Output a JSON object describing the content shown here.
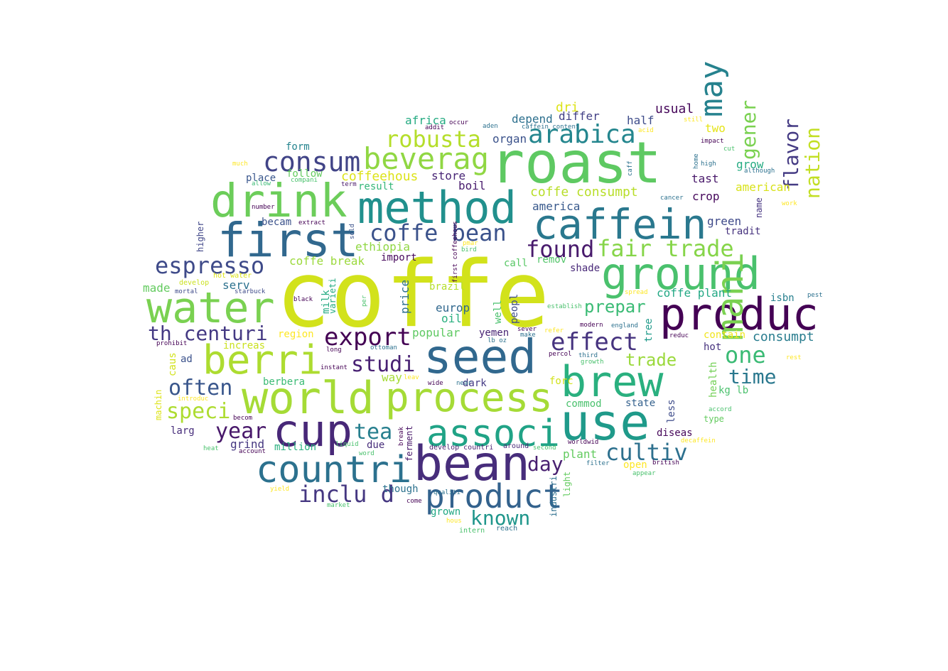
{
  "words": [
    {
      "text": "coffe",
      "color": "#d2e21b"
    },
    {
      "text": "roast",
      "color": "#5ec962"
    },
    {
      "text": "method",
      "color": "#21908d"
    },
    {
      "text": "drink",
      "color": "#6ccd5a"
    },
    {
      "text": "first",
      "color": "#31688e"
    },
    {
      "text": "caffein",
      "color": "#2a788e"
    },
    {
      "text": "ground",
      "color": "#4ac16d"
    },
    {
      "text": "produc",
      "color": "#440154"
    },
    {
      "text": "water",
      "color": "#7ad151"
    },
    {
      "text": "seed",
      "color": "#31688e"
    },
    {
      "text": "berri",
      "color": "#addc30"
    },
    {
      "text": "world",
      "color": "#a5db36"
    },
    {
      "text": "process",
      "color": "#a5db36"
    },
    {
      "text": "cup",
      "color": "#482878"
    },
    {
      "text": "use",
      "color": "#1f9a8a"
    },
    {
      "text": "brew",
      "color": "#2ab07f"
    },
    {
      "text": "associ",
      "color": "#20a386"
    },
    {
      "text": "bean",
      "color": "#472d7b"
    },
    {
      "text": "countri",
      "color": "#2c718e"
    },
    {
      "text": "product",
      "color": "#33628d"
    },
    {
      "text": "mani",
      "color": "#7ad151"
    },
    {
      "text": "may",
      "color": "#26828e"
    },
    {
      "text": "beverag",
      "color": "#90d743"
    },
    {
      "text": "consum",
      "color": "#414487"
    },
    {
      "text": "arabica",
      "color": "#24868e"
    },
    {
      "text": "robusta",
      "color": "#b5de2b"
    },
    {
      "text": "coffe bean",
      "color": "#3b528b"
    },
    {
      "text": "found",
      "color": "#481a6c"
    },
    {
      "text": "fair trade",
      "color": "#86d549"
    },
    {
      "text": "espresso",
      "color": "#3e4a89"
    },
    {
      "text": "th centuri",
      "color": "#443983"
    },
    {
      "text": "export",
      "color": "#440154"
    },
    {
      "text": "effect",
      "color": "#46337f"
    },
    {
      "text": "studi",
      "color": "#482173"
    },
    {
      "text": "often",
      "color": "#39568c"
    },
    {
      "text": "speci",
      "color": "#addc30"
    },
    {
      "text": "year",
      "color": "#48186a"
    },
    {
      "text": "tea",
      "color": "#277f8e"
    },
    {
      "text": "inclu d",
      "color": "#453781"
    },
    {
      "text": "known",
      "color": "#1f968b"
    },
    {
      "text": "day",
      "color": "#481f70"
    },
    {
      "text": "cultiv",
      "color": "#2d708e"
    },
    {
      "text": "one",
      "color": "#3bbb75"
    },
    {
      "text": "time",
      "color": "#2a788e"
    },
    {
      "text": "trade",
      "color": "#9bd93c"
    },
    {
      "text": "prepar",
      "color": "#3bbb75"
    },
    {
      "text": "flavor",
      "color": "#443a83"
    },
    {
      "text": "nation",
      "color": "#c2df23"
    },
    {
      "text": "gener",
      "color": "#7ad151"
    },
    {
      "text": "coffe consumpt",
      "color": "#b8de29"
    },
    {
      "text": "coffeehous",
      "color": "#dde318"
    },
    {
      "text": "coffe break",
      "color": "#9bd93c"
    },
    {
      "text": "coffe plant",
      "color": "#22a884"
    },
    {
      "text": "consumpt",
      "color": "#287c8e"
    },
    {
      "text": "ethiopia",
      "color": "#90d743"
    },
    {
      "text": "america",
      "color": "#38598c"
    },
    {
      "text": "organ",
      "color": "#3b528b"
    },
    {
      "text": "depend",
      "color": "#2d708e"
    },
    {
      "text": "differ",
      "color": "#424086"
    },
    {
      "text": "half",
      "color": "#3e4c8a"
    },
    {
      "text": "usual",
      "color": "#46075a"
    },
    {
      "text": "dri",
      "color": "#dde318"
    },
    {
      "text": "two",
      "color": "#e5e419"
    },
    {
      "text": "africa",
      "color": "#25ab82"
    },
    {
      "text": "grow",
      "color": "#25ab82"
    },
    {
      "text": "american",
      "color": "#d8e219"
    },
    {
      "text": "tast",
      "color": "#48186a"
    },
    {
      "text": "crop",
      "color": "#46085c"
    },
    {
      "text": "green",
      "color": "#3e4989"
    },
    {
      "text": "tradit",
      "color": "#46327e"
    },
    {
      "text": "form",
      "color": "#25848e"
    },
    {
      "text": "follow",
      "color": "#63cb5f"
    },
    {
      "text": "place",
      "color": "#39568c"
    },
    {
      "text": "becam",
      "color": "#3b528b"
    },
    {
      "text": "store",
      "color": "#482576"
    },
    {
      "text": "boil",
      "color": "#481b6d"
    },
    {
      "text": "result",
      "color": "#35b779"
    },
    {
      "text": "import",
      "color": "#46085c"
    },
    {
      "text": "remov",
      "color": "#52c569"
    },
    {
      "text": "call",
      "color": "#58c765"
    },
    {
      "text": "shade",
      "color": "#482878"
    },
    {
      "text": "serv",
      "color": "#2c718e"
    },
    {
      "text": "made",
      "color": "#63cb5f"
    },
    {
      "text": "grind",
      "color": "#453781"
    },
    {
      "text": "million",
      "color": "#2ab07f"
    },
    {
      "text": "due",
      "color": "#472c7a"
    },
    {
      "text": "europ",
      "color": "#31688e"
    },
    {
      "text": "oil",
      "color": "#29af7f"
    },
    {
      "text": "popular",
      "color": "#5ec962"
    },
    {
      "text": "yemen",
      "color": "#482475"
    },
    {
      "text": "region",
      "color": "#fde725"
    },
    {
      "text": "increas",
      "color": "#cae11f"
    },
    {
      "text": "hot",
      "color": "#46327e"
    },
    {
      "text": "contain",
      "color": "#f1e51d"
    },
    {
      "text": "isbn",
      "color": "#277f8e"
    },
    {
      "text": "ad",
      "color": "#3b528b"
    },
    {
      "text": "caus",
      "color": "#d2e21b"
    },
    {
      "text": "berbera",
      "color": "#3bbb75"
    },
    {
      "text": "way",
      "color": "#a5db36"
    },
    {
      "text": "dark",
      "color": "#443983"
    },
    {
      "text": "forc",
      "color": "#d2e21b"
    },
    {
      "text": "commod",
      "color": "#4ac16d"
    },
    {
      "text": "state",
      "color": "#34618d"
    },
    {
      "text": "diseas",
      "color": "#46075a"
    },
    {
      "text": "type",
      "color": "#63cb5f"
    },
    {
      "text": "kg lb",
      "color": "#4ac16d"
    },
    {
      "text": "larg",
      "color": "#472d7b"
    },
    {
      "text": "though",
      "color": "#2c728e"
    },
    {
      "text": "plant",
      "color": "#63cb5f"
    },
    {
      "text": "open",
      "color": "#fde725"
    },
    {
      "text": "grown",
      "color": "#22a884"
    },
    {
      "text": "milk",
      "color": "#25ab82"
    },
    {
      "text": "price",
      "color": "#2d708e"
    },
    {
      "text": "well",
      "color": "#4ac16d"
    },
    {
      "text": "peopl",
      "color": "#3e4c8a"
    },
    {
      "text": "brazil",
      "color": "#b5de2b"
    },
    {
      "text": "varieti",
      "color": "#25ab82"
    },
    {
      "text": "health",
      "color": "#73d056"
    },
    {
      "text": "less",
      "color": "#3e4c8a"
    },
    {
      "text": "tree",
      "color": "#1f9a8a"
    },
    {
      "text": "ferment",
      "color": "#481769"
    },
    {
      "text": "light",
      "color": "#63cb5f"
    },
    {
      "text": "industri",
      "color": "#2e6f8e"
    },
    {
      "text": "higher",
      "color": "#404688"
    },
    {
      "text": "machin",
      "color": "#dde318"
    },
    {
      "text": "name",
      "color": "#463480"
    },
    {
      "text": "develop",
      "color": "#cae11f"
    },
    {
      "text": "hot water",
      "color": "#dde318"
    },
    {
      "text": "mortal",
      "color": "#3e4a89"
    },
    {
      "text": "starbuck",
      "color": "#3e4a89"
    },
    {
      "text": "black",
      "color": "#440154"
    },
    {
      "text": "number",
      "color": "#440154"
    },
    {
      "text": "much",
      "color": "#fde725"
    },
    {
      "text": "allow",
      "color": "#3bbb75"
    },
    {
      "text": "compani",
      "color": "#4ac16d"
    },
    {
      "text": "term",
      "color": "#481769"
    },
    {
      "text": "sold",
      "color": "#3b528b"
    },
    {
      "text": "extract",
      "color": "#440154"
    },
    {
      "text": "prohibit",
      "color": "#440154"
    },
    {
      "text": "introduc",
      "color": "#fde725"
    },
    {
      "text": "becom",
      "color": "#440154"
    },
    {
      "text": "heat",
      "color": "#4ac16d"
    },
    {
      "text": "account",
      "color": "#440154"
    },
    {
      "text": "liquid",
      "color": "#4ac16d"
    },
    {
      "text": "word",
      "color": "#4ac16d"
    },
    {
      "text": "break",
      "color": "#440154"
    },
    {
      "text": "develop countri",
      "color": "#481f70"
    },
    {
      "text": "around",
      "color": "#482878"
    },
    {
      "text": "second",
      "color": "#4ac16d"
    },
    {
      "text": "worldwid",
      "color": "#440154"
    },
    {
      "text": "filter",
      "color": "#2c718e"
    },
    {
      "text": "british",
      "color": "#440154"
    },
    {
      "text": "appear",
      "color": "#4ac16d"
    },
    {
      "text": "decaffein",
      "color": "#fde725"
    },
    {
      "text": "accord",
      "color": "#4ac16d"
    },
    {
      "text": "yield",
      "color": "#fde725"
    },
    {
      "text": "market",
      "color": "#4ac16d"
    },
    {
      "text": "come",
      "color": "#440154"
    },
    {
      "text": "hous",
      "color": "#fde725"
    },
    {
      "text": "intern",
      "color": "#4ac16d"
    },
    {
      "text": "reach",
      "color": "#2c718e"
    },
    {
      "text": "qualiti",
      "color": "#2c718e"
    },
    {
      "text": "wide",
      "color": "#440154"
    },
    {
      "text": "near",
      "color": "#2c718e"
    },
    {
      "text": "instant",
      "color": "#440154"
    },
    {
      "text": "leav",
      "color": "#fde725"
    },
    {
      "text": "long",
      "color": "#440154"
    },
    {
      "text": "ottoman",
      "color": "#2c718e"
    },
    {
      "text": "lb oz",
      "color": "#2c718e"
    },
    {
      "text": "per",
      "color": "#4ac16d"
    },
    {
      "text": "first coffeehous",
      "color": "#440154"
    },
    {
      "text": "pmar",
      "color": "#fde725"
    },
    {
      "text": "bird",
      "color": "#4ac16d"
    },
    {
      "text": "sever",
      "color": "#440154"
    },
    {
      "text": "make",
      "color": "#2c718e"
    },
    {
      "text": "refer",
      "color": "#fde725"
    },
    {
      "text": "establish",
      "color": "#4ac16d"
    },
    {
      "text": "modern",
      "color": "#440154"
    },
    {
      "text": "england",
      "color": "#2c718e"
    },
    {
      "text": "percol",
      "color": "#440154"
    },
    {
      "text": "third",
      "color": "#2c718e"
    },
    {
      "text": "growth",
      "color": "#4ac16d"
    },
    {
      "text": "reduc",
      "color": "#440154"
    },
    {
      "text": "rest",
      "color": "#fde725"
    },
    {
      "text": "spread",
      "color": "#fde725"
    },
    {
      "text": "pest",
      "color": "#2c718e"
    },
    {
      "text": "cancer",
      "color": "#2c718e"
    },
    {
      "text": "work",
      "color": "#fde725"
    },
    {
      "text": "although",
      "color": "#2c718e"
    },
    {
      "text": "high",
      "color": "#2c718e"
    },
    {
      "text": "home",
      "color": "#2c718e"
    },
    {
      "text": "caff",
      "color": "#2c718e"
    },
    {
      "text": "cut",
      "color": "#4ac16d"
    },
    {
      "text": "impact",
      "color": "#440154"
    },
    {
      "text": "still",
      "color": "#fde725"
    },
    {
      "text": "acid",
      "color": "#fde725"
    },
    {
      "text": "caffein content",
      "color": "#2c718e"
    },
    {
      "text": "aden",
      "color": "#2c718e"
    },
    {
      "text": "addit",
      "color": "#440154"
    },
    {
      "text": "occur",
      "color": "#440154"
    }
  ]
}
